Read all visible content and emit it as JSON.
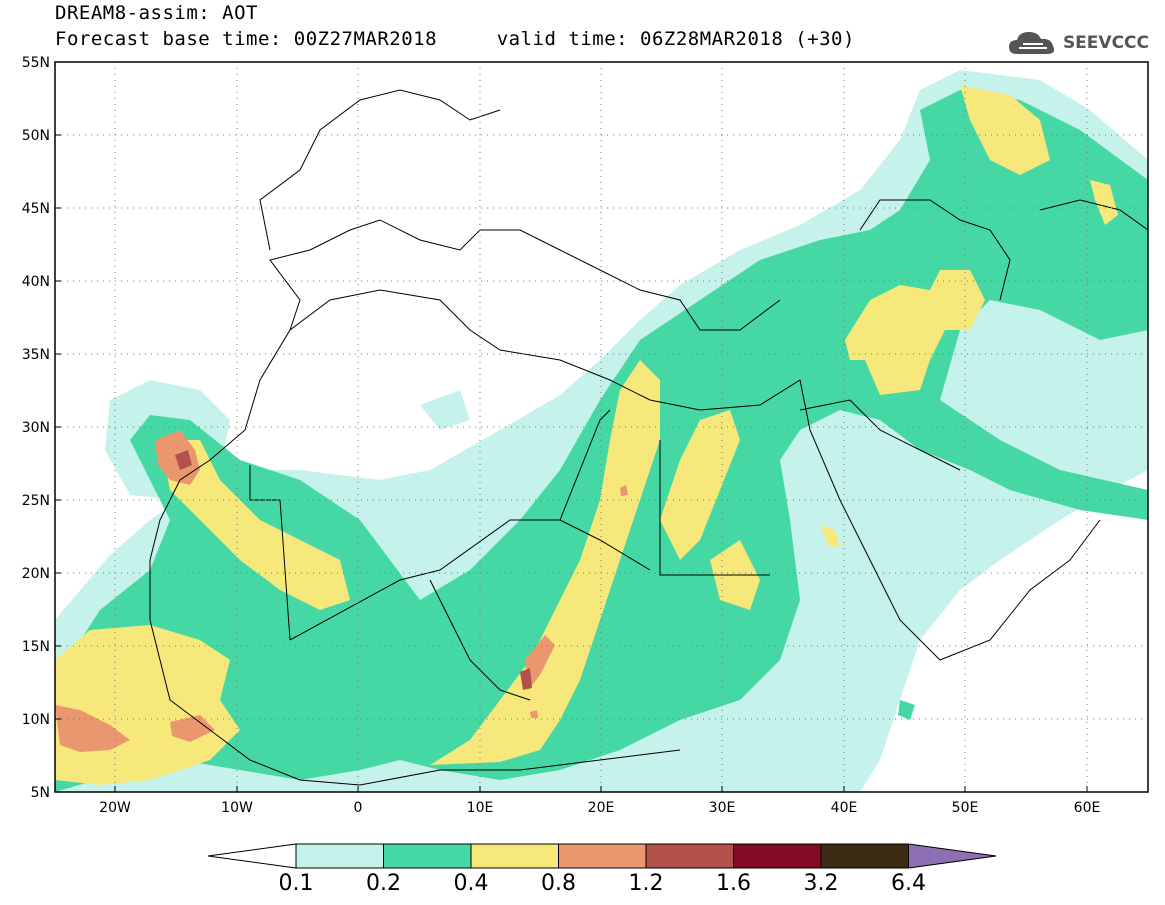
{
  "header": {
    "line1": "DREAM8-assim: AOT",
    "line2": "Forecast base time: 00Z27MAR2018     valid time: 06Z28MAR2018 (+30)"
  },
  "logo": {
    "text": "SEEVCCC",
    "icon": "cloud-icon"
  },
  "map": {
    "lon_range": [
      -25,
      65
    ],
    "lat_range": [
      5,
      55
    ],
    "lat_ticks": [
      "55N",
      "50N",
      "45N",
      "40N",
      "35N",
      "30N",
      "25N",
      "20N",
      "15N",
      "10N",
      "5N"
    ],
    "lon_ticks": [
      "20W",
      "10W",
      "0",
      "10E",
      "20E",
      "30E",
      "40E",
      "50E",
      "60E"
    ],
    "gridlines": "dotted"
  },
  "colorbar": {
    "labels": [
      "0.1",
      "0.2",
      "0.4",
      "0.8",
      "1.2",
      "1.6",
      "3.2",
      "6.4"
    ],
    "colors": [
      "#ffffff",
      "#c5f2ea",
      "#46d8a4",
      "#f6e87a",
      "#ea9770",
      "#b3514a",
      "#810b25",
      "#3c2a14",
      "#8d6fb3"
    ]
  }
}
